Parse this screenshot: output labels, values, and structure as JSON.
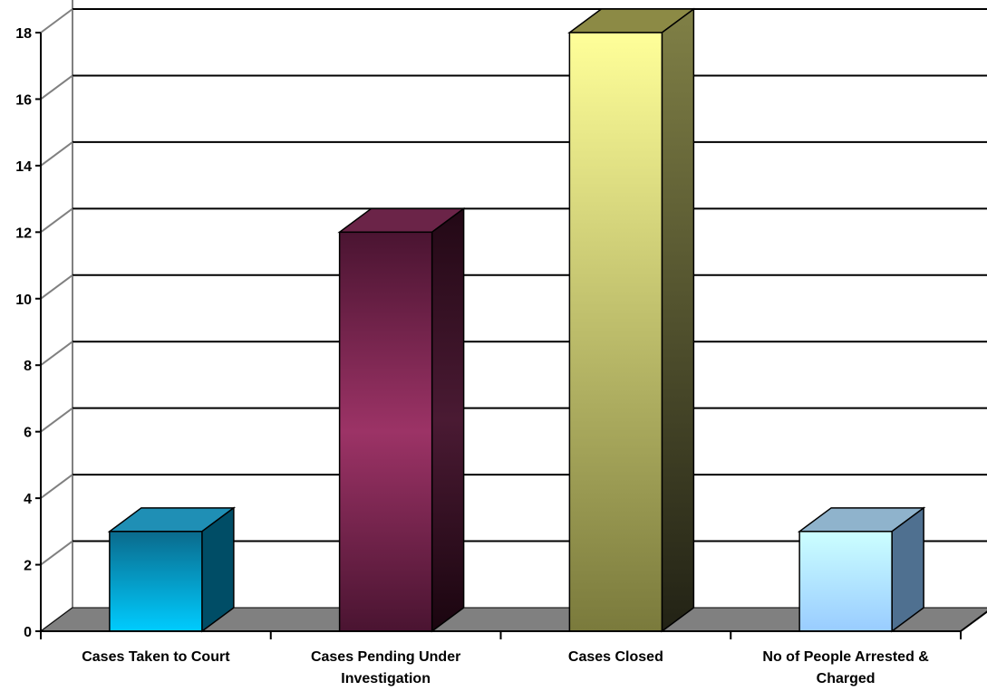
{
  "chart_data": {
    "type": "bar",
    "style": "3d-column",
    "categories": [
      [
        "Cases Taken to Court"
      ],
      [
        "Cases Pending Under",
        "Investigation"
      ],
      [
        "Cases Closed"
      ],
      [
        "No of People Arrested &",
        "Charged"
      ]
    ],
    "values": [
      3,
      12,
      18,
      3
    ],
    "yticks": [
      0,
      2,
      4,
      6,
      8,
      10,
      12,
      14,
      16,
      18
    ],
    "ylim": [
      0,
      18
    ],
    "grid": true,
    "title": "",
    "xlabel": "",
    "ylabel": "",
    "bar_colors": [
      {
        "top": "#1f8fb5",
        "front_top": "#0a6a8c",
        "front_bottom": "#00ccff",
        "side": "#004d66"
      },
      {
        "top": "#6b2448",
        "front_top": "#4a1431",
        "front_mid": "#9c3366",
        "front_bottom": "#4a1431",
        "side": "#2e0c1d"
      },
      {
        "top": "#8c8a45",
        "front_top": "#ffff99",
        "front_bottom": "#7a7a3c",
        "side": "#3f3f1c"
      },
      {
        "top": "#8fb3cc",
        "front_top": "#ccffff",
        "front_bottom": "#99ccff",
        "side": "#4f7090"
      }
    ],
    "floor_color": "#808080"
  }
}
